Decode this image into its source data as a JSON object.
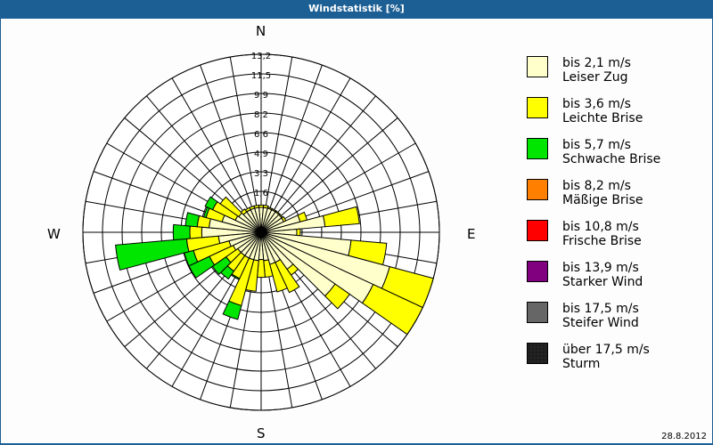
{
  "window": {
    "title": "Windstatistik [%]"
  },
  "footer": {
    "date": "28.8.2012"
  },
  "compass": {
    "n": "N",
    "e": "E",
    "s": "S",
    "w": "W"
  },
  "legend": [
    {
      "line1": "bis 2,1 m/s",
      "line2": "Leiser Zug",
      "color": "#ffffcc"
    },
    {
      "line1": "bis 3,6 m/s",
      "line2": "Leichte Brise",
      "color": "#ffff00"
    },
    {
      "line1": "bis 5,7 m/s",
      "line2": "Schwache Brise",
      "color": "#00e600"
    },
    {
      "line1": "bis 8,2 m/s",
      "line2": "Mäßige Brise",
      "color": "#ff8000"
    },
    {
      "line1": "bis 10,8 m/s",
      "line2": "Frische Brise",
      "color": "#ff0000"
    },
    {
      "line1": "bis 13,9 m/s",
      "line2": "Starker Wind",
      "color": "#800080"
    },
    {
      "line1": "bis 17,5 m/s",
      "line2": "Steifer Wind",
      "color": "#666666"
    },
    {
      "line1": "über 17,5 m/s",
      "line2": "Sturm",
      "color": "#222222"
    }
  ],
  "chart_data": {
    "type": "wind-rose",
    "title": "Windstatistik [%]",
    "ring_labels": [
      "1,6",
      "3,3",
      "4,9",
      "6,6",
      "8,2",
      "9,9",
      "11,5",
      "13,2"
    ],
    "rings": [
      1.65,
      3.3,
      4.95,
      6.6,
      8.25,
      9.9,
      11.55,
      13.2
    ],
    "rmax": 13.2,
    "sector_width_deg": 10,
    "speed_classes": [
      "bis 2,1 m/s",
      "bis 3,6 m/s",
      "bis 5,7 m/s",
      "bis 8,2 m/s",
      "bis 10,8 m/s",
      "bis 13,9 m/s",
      "bis 17,5 m/s",
      "über 17,5 m/s"
    ],
    "note": "cumulative radii in % per direction (deg clockwise from N): [cream, yellow, green]",
    "sectors": [
      {
        "dir": 0,
        "cum": [
          0.3,
          0.5,
          0.5
        ]
      },
      {
        "dir": 10,
        "cum": [
          0.3,
          0.5,
          0.5
        ]
      },
      {
        "dir": 20,
        "cum": [
          0.3,
          0.4,
          0.4
        ]
      },
      {
        "dir": 30,
        "cum": [
          0.3,
          0.4,
          0.4
        ]
      },
      {
        "dir": 40,
        "cum": [
          0.3,
          0.4,
          0.4
        ]
      },
      {
        "dir": 50,
        "cum": [
          0.3,
          0.4,
          0.4
        ]
      },
      {
        "dir": 60,
        "cum": [
          0.3,
          0.5,
          0.5
        ]
      },
      {
        "dir": 70,
        "cum": [
          1.6,
          2.2,
          2.2
        ]
      },
      {
        "dir": 80,
        "cum": [
          3.6,
          6.5,
          6.5
        ]
      },
      {
        "dir": 90,
        "cum": [
          1.2,
          1.5,
          1.5
        ]
      },
      {
        "dir": 100,
        "cum": [
          5.8,
          8.8,
          8.8
        ]
      },
      {
        "dir": 110,
        "cum": [
          9.4,
          13.2,
          13.2
        ]
      },
      {
        "dir": 120,
        "cum": [
          8.6,
          13.2,
          13.2
        ]
      },
      {
        "dir": 130,
        "cum": [
          5.8,
          7.3,
          7.3
        ]
      },
      {
        "dir": 140,
        "cum": [
          2.0,
          2.6,
          2.6
        ]
      },
      {
        "dir": 150,
        "cum": [
          1.0,
          3.8,
          3.8
        ]
      },
      {
        "dir": 160,
        "cum": [
          1.0,
          3.4,
          3.4
        ]
      },
      {
        "dir": 170,
        "cum": [
          0.6,
          2.0,
          2.0
        ]
      },
      {
        "dir": 180,
        "cum": [
          0.5,
          2.0,
          2.0
        ]
      },
      {
        "dir": 190,
        "cum": [
          0.6,
          3.2,
          3.2
        ]
      },
      {
        "dir": 200,
        "cum": [
          0.6,
          4.6,
          5.8
        ]
      },
      {
        "dir": 210,
        "cum": [
          0.6,
          2.5,
          2.6
        ]
      },
      {
        "dir": 220,
        "cum": [
          0.6,
          2.2,
          3.0
        ]
      },
      {
        "dir": 230,
        "cum": [
          0.6,
          1.8,
          3.2
        ]
      },
      {
        "dir": 240,
        "cum": [
          0.8,
          3.0,
          4.9
        ]
      },
      {
        "dir": 250,
        "cum": [
          1.0,
          4.1,
          4.9
        ]
      },
      {
        "dir": 260,
        "cum": [
          1.8,
          4.5,
          10.5
        ]
      },
      {
        "dir": 270,
        "cum": [
          3.2,
          4.2,
          5.6
        ]
      },
      {
        "dir": 280,
        "cum": [
          2.6,
          3.6,
          4.6
        ]
      },
      {
        "dir": 290,
        "cum": [
          1.6,
          3.0,
          3.2
        ]
      },
      {
        "dir": 300,
        "cum": [
          0.6,
          2.7,
          3.4
        ]
      },
      {
        "dir": 310,
        "cum": [
          0.5,
          2.4,
          2.4
        ]
      },
      {
        "dir": 320,
        "cum": [
          0.3,
          0.6,
          0.6
        ]
      },
      {
        "dir": 330,
        "cum": [
          0.3,
          0.5,
          0.5
        ]
      },
      {
        "dir": 340,
        "cum": [
          0.3,
          0.5,
          0.5
        ]
      },
      {
        "dir": 350,
        "cum": [
          0.3,
          0.5,
          0.5
        ]
      }
    ]
  }
}
